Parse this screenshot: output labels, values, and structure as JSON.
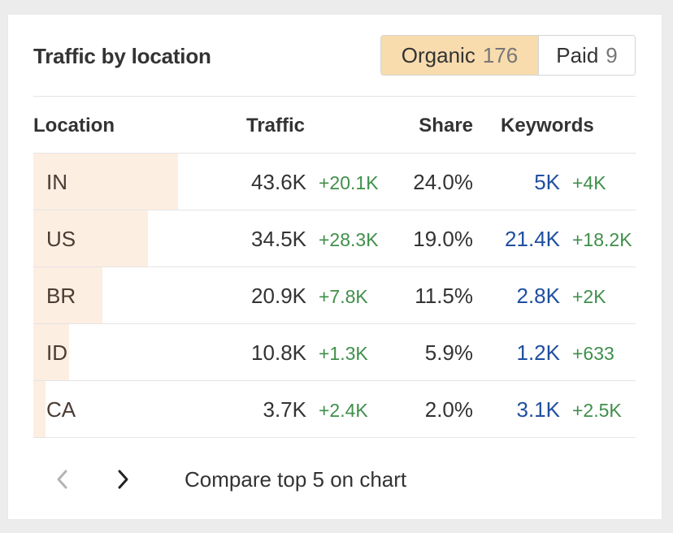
{
  "widget": {
    "title": "Traffic by location"
  },
  "toggle": {
    "organic_label": "Organic",
    "organic_count": "176",
    "paid_label": "Paid",
    "paid_count": "9",
    "active": "organic",
    "active_color": "#f8dcae"
  },
  "table": {
    "headers": {
      "location": "Location",
      "traffic": "Traffic",
      "share": "Share",
      "keywords": "Keywords"
    },
    "rows": [
      {
        "location": "IN",
        "traffic": "43.6K",
        "traffic_delta": "+20.1K",
        "share": "24.0%",
        "share_value": 24.0,
        "keywords": "5K",
        "keywords_delta": "+4K"
      },
      {
        "location": "US",
        "traffic": "34.5K",
        "traffic_delta": "+28.3K",
        "share": "19.0%",
        "share_value": 19.0,
        "keywords": "21.4K",
        "keywords_delta": "+18.2K"
      },
      {
        "location": "BR",
        "traffic": "20.9K",
        "traffic_delta": "+7.8K",
        "share": "11.5%",
        "share_value": 11.5,
        "keywords": "2.8K",
        "keywords_delta": "+2K"
      },
      {
        "location": "ID",
        "traffic": "10.8K",
        "traffic_delta": "+1.3K",
        "share": "5.9%",
        "share_value": 5.9,
        "keywords": "1.2K",
        "keywords_delta": "+633"
      },
      {
        "location": "CA",
        "traffic": "3.7K",
        "traffic_delta": "+2.4K",
        "share": "2.0%",
        "share_value": 2.0,
        "keywords": "3.1K",
        "keywords_delta": "+2.5K"
      }
    ],
    "colors": {
      "share_bar": "#fdeee2",
      "delta_positive": "#3f8f4a",
      "keywords_link": "#1f4fa0"
    }
  },
  "pager": {
    "prev_icon": "chevron-left-icon",
    "next_icon": "chevron-right-icon",
    "prev_enabled": false,
    "compare_label": "Compare top 5 on chart"
  }
}
